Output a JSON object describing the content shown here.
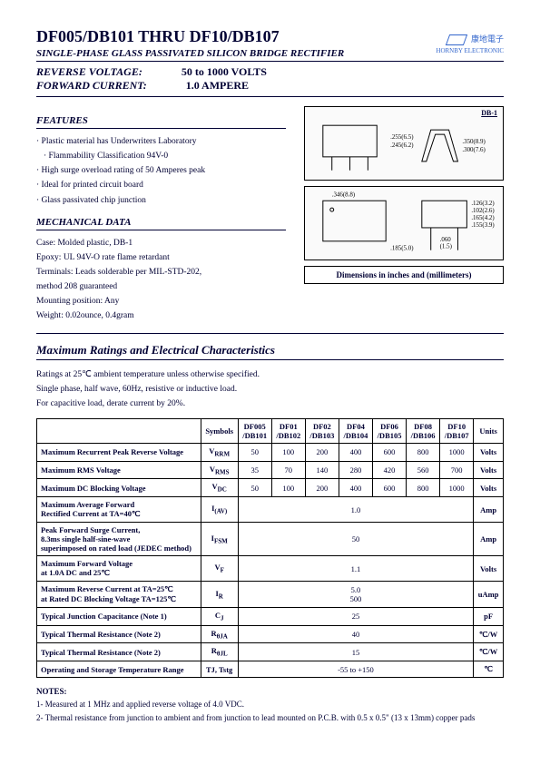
{
  "header": {
    "title": "DF005/DB101 THRU DF10/DB107",
    "subtitle": "SINGLE-PHASE GLASS PASSIVATED SILICON BRIDGE RECTIFIER",
    "rev_label": "REVERSE VOLTAGE:",
    "rev_val": "50 to 1000 VOLTS",
    "fwd_label": "FORWARD CURRENT:",
    "fwd_val": "1.0 AMPERE"
  },
  "logo": {
    "chinese": "康地電子",
    "eng": "HORNBY ELECTRONIC"
  },
  "features": {
    "head": "FEATURES",
    "items": [
      "Plastic material has Underwriters Laboratory",
      "  Flammability Classification 94V-0",
      "High surge overload rating of 50 Amperes peak",
      "Ideal for printed circuit board",
      "Glass passivated chip junction"
    ]
  },
  "mech": {
    "head": "MECHANICAL DATA",
    "lines": [
      "Case: Molded plastic, DB-1",
      "Epoxy: UL 94V-O rate flame retardant",
      "Terminals: Leads solderable per MIL-STD-202,",
      "method 208 guaranteed",
      "Mounting position: Any",
      "Weight: 0.02ounce, 0.4gram"
    ]
  },
  "package": {
    "label": "DB-1",
    "dim_caption": "Dimensions in inches and (millimeters)"
  },
  "ratings_section": {
    "head": "Maximum Ratings and Electrical Characteristics",
    "notes": [
      "Ratings at 25℃ ambient temperature unless otherwise specified.",
      "Single phase, half wave, 60Hz, resistive or inductive load.",
      "For capacitive load, derate current by 20%."
    ]
  },
  "table": {
    "head_symbols": "Symbols",
    "head_units": "Units",
    "parts": [
      "DF005\n/DB101",
      "DF01\n/DB102",
      "DF02\n/DB103",
      "DF04\n/DB104",
      "DF06\n/DB105",
      "DF08\n/DB106",
      "DF10\n/DB107"
    ],
    "rows": [
      {
        "param": "Maximum Recurrent Peak Reverse Voltage",
        "sym": "V",
        "sub": "RRM",
        "vals": [
          "50",
          "100",
          "200",
          "400",
          "600",
          "800",
          "1000"
        ],
        "unit": "Volts"
      },
      {
        "param": "Maximum RMS Voltage",
        "sym": "V",
        "sub": "RMS",
        "vals": [
          "35",
          "70",
          "140",
          "280",
          "420",
          "560",
          "700"
        ],
        "unit": "Volts"
      },
      {
        "param": "Maximum DC Blocking Voltage",
        "sym": "V",
        "sub": "DC",
        "vals": [
          "50",
          "100",
          "200",
          "400",
          "600",
          "800",
          "1000"
        ],
        "unit": "Volts"
      },
      {
        "param": "Maximum Average Forward\nRectified Current at TA=40℃",
        "sym": "I",
        "sub": "(AV)",
        "span": "1.0",
        "unit": "Amp"
      },
      {
        "param": "Peak Forward Surge Current,\n8.3ms single half-sine-wave\nsuperimposed on rated load (JEDEC method)",
        "sym": "I",
        "sub": "FSM",
        "span": "50",
        "unit": "Amp"
      },
      {
        "param": "Maximum Forward Voltage\nat 1.0A DC and 25℃",
        "sym": "V",
        "sub": "F",
        "span": "1.1",
        "unit": "Volts"
      },
      {
        "param": "Maximum Reverse Current        at TA=25℃\nat Rated DC Blocking Voltage        TA=125℃",
        "sym": "I",
        "sub": "R",
        "span": "5.0\n500",
        "unit": "uAmp"
      },
      {
        "param": "Typical Junction Capacitance (Note 1)",
        "sym": "C",
        "sub": "J",
        "span": "25",
        "unit": "pF"
      },
      {
        "param": "Typical Thermal Resistance (Note 2)",
        "sym": "R",
        "sub": "θJA",
        "span": "40",
        "unit": "℃/W"
      },
      {
        "param": "Typical Thermal Resistance (Note 2)",
        "sym": "R",
        "sub": "θJL",
        "span": "15",
        "unit": "℃/W"
      },
      {
        "param": "Operating and Storage Temperature Range",
        "sym": "TJ, Tstg",
        "sub": "",
        "span": "-55 to +150",
        "unit": "℃"
      }
    ]
  },
  "notes": {
    "head": "NOTES:",
    "items": [
      "1- Measured at 1 MHz and applied reverse voltage of 4.0 VDC.",
      "2- Thermal resistance from junction to ambient and from junction to lead mounted on P.C.B. with 0.5 x 0.5\" (13 x 13mm) copper pads"
    ]
  }
}
